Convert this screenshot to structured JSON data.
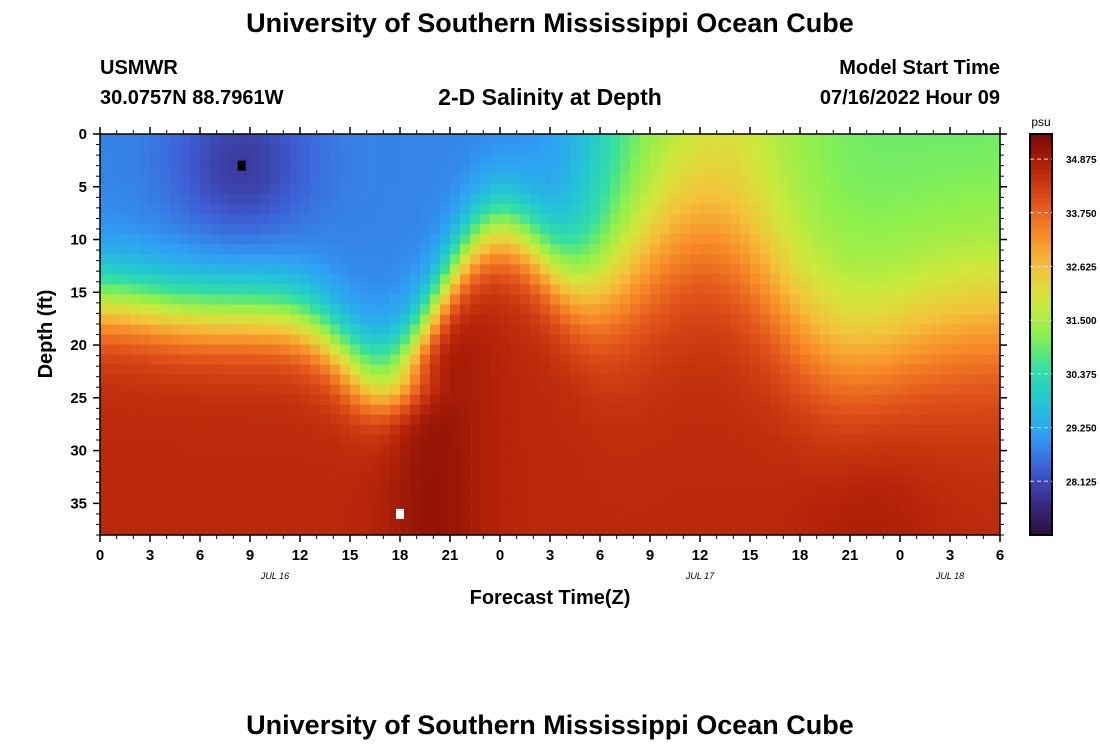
{
  "page": {
    "title_top": "University of Southern Mississippi Ocean Cube",
    "title_bottom": "University of Southern Mississippi Ocean Cube",
    "station_id": "USMWR",
    "station_coords": "30.0757N  88.7961W",
    "model_start_label": "Model Start Time",
    "model_start_value": "07/16/2022 Hour 09"
  },
  "chart_data": {
    "type": "heatmap",
    "title": "2-D Salinity at Depth",
    "xlabel": "Forecast Time(Z)",
    "ylabel": "Depth (ft)",
    "x_tick_labels": [
      "0",
      "3",
      "6",
      "9",
      "12",
      "15",
      "18",
      "21",
      "0",
      "3",
      "6",
      "9",
      "12",
      "15",
      "18",
      "21",
      "0",
      "3",
      "6"
    ],
    "x_range_hours": [
      0,
      54
    ],
    "date_labels": [
      {
        "label": "JUL 16",
        "at_tick": 3.5
      },
      {
        "label": "JUL 17",
        "at_tick": 12
      },
      {
        "label": "JUL 18",
        "at_tick": 17
      }
    ],
    "y_ticks": [
      0,
      5,
      10,
      15,
      20,
      25,
      30,
      35
    ],
    "y_range": [
      0,
      38
    ],
    "y_inverted": true,
    "colorbar": {
      "unit": "psu",
      "min": 27.0,
      "max": 35.4,
      "ticks": [
        "28.125",
        "29.250",
        "30.375",
        "31.500",
        "32.625",
        "33.750",
        "34.875"
      ],
      "colors": [
        "#2a0f3d",
        "#3a2b86",
        "#3e5fd6",
        "#2f9ff5",
        "#22c7d3",
        "#35e0a0",
        "#8cf04e",
        "#cfe83a",
        "#f4c23a",
        "#f78a28",
        "#e0501a",
        "#b42208",
        "#7a0a05"
      ]
    },
    "markers": [
      {
        "hour": 8.5,
        "depth": 3,
        "color": "#000000",
        "meaning": "min"
      },
      {
        "hour": 18,
        "depth": 36,
        "color": "#ffffff",
        "meaning": "max"
      }
    ]
  }
}
